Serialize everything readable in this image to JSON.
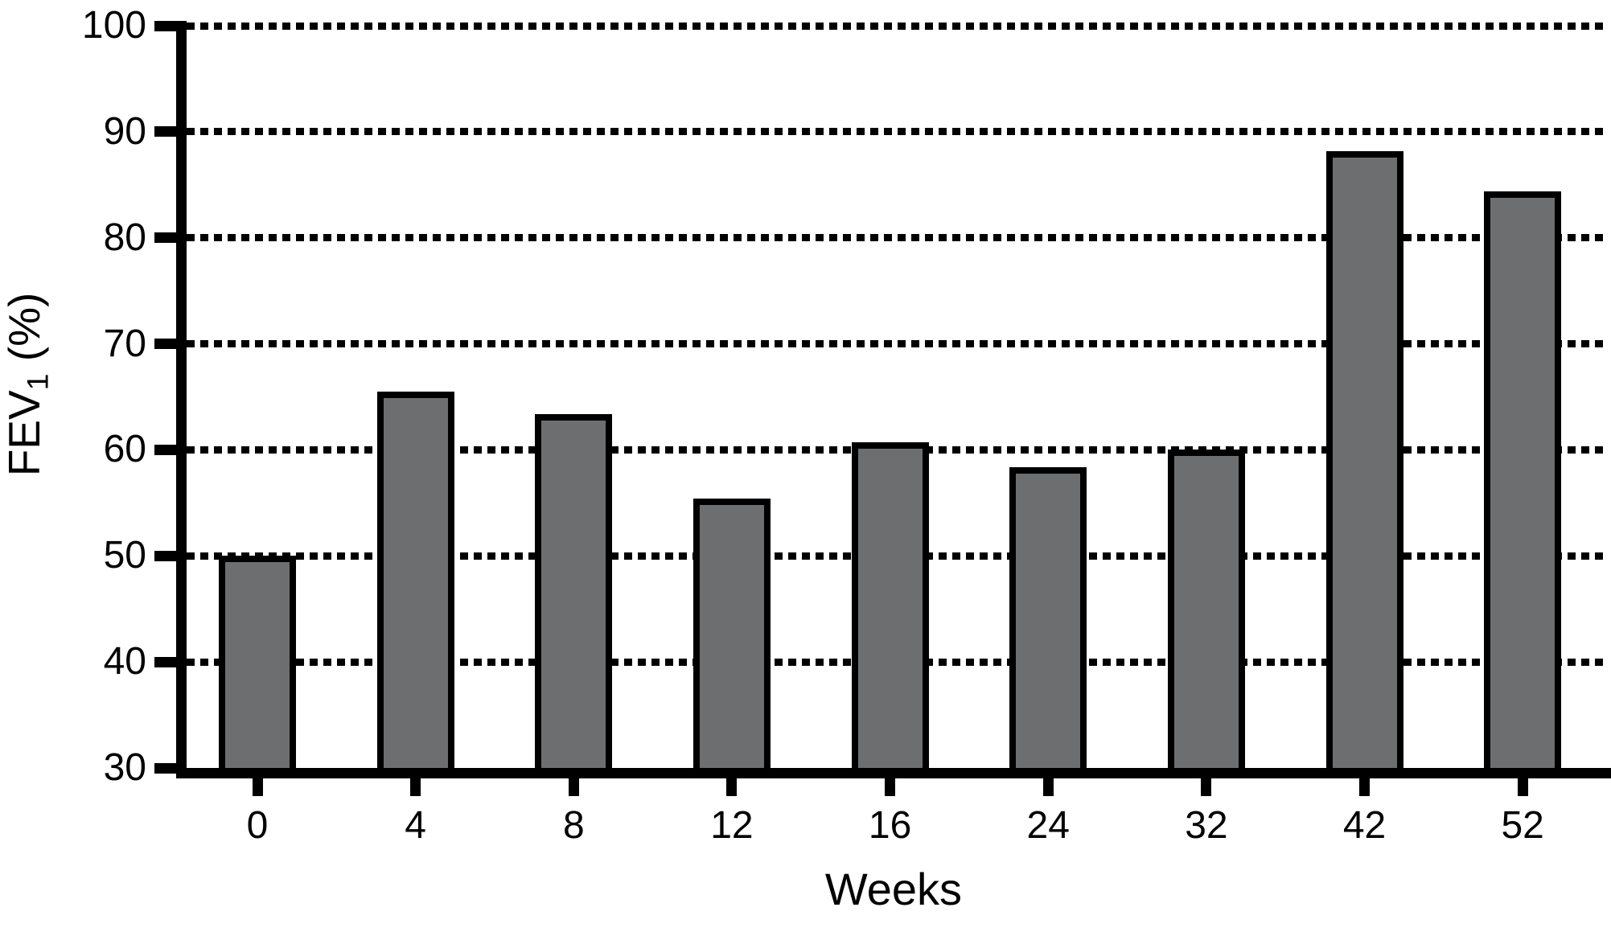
{
  "chart_data": {
    "type": "bar",
    "title": "",
    "xlabel": "Weeks",
    "ylabel": "FEV1 (%)",
    "ylabel_parts": {
      "main": "FEV",
      "sub": "1",
      "unit": " (%)"
    },
    "categories": [
      "0",
      "4",
      "8",
      "12",
      "16",
      "24",
      "32",
      "42",
      "52"
    ],
    "values": [
      50,
      65.5,
      63.4,
      55.4,
      60.7,
      58.4,
      60,
      88.2,
      84.4
    ],
    "ylim": [
      30,
      100
    ],
    "yticks": [
      30,
      40,
      50,
      60,
      70,
      80,
      90,
      100
    ],
    "gridline_ticks": [
      40,
      50,
      60,
      70,
      80,
      90,
      100
    ],
    "grid_style": "dotted-horizontal",
    "legend": "none",
    "colors": {
      "bar_fill": "#6c6e70",
      "bar_border": "#000000",
      "axis": "#000000",
      "text": "#000000",
      "background": "#ffffff"
    }
  }
}
